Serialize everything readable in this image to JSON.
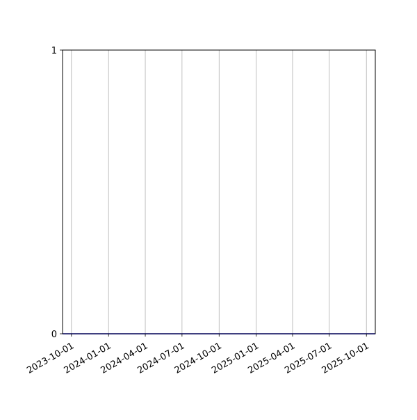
{
  "chart_data": {
    "type": "line",
    "title": "",
    "xlabel": "",
    "ylabel": "",
    "xlim": [
      "2023-09-09",
      "2025-10-23"
    ],
    "ylim": [
      0,
      1
    ],
    "grid": {
      "x": true,
      "y": false
    },
    "x_ticks": [
      "2023-10-01",
      "2024-01-01",
      "2024-04-01",
      "2024-07-01",
      "2024-10-01",
      "2025-01-01",
      "2025-04-01",
      "2025-07-01",
      "2025-10-01"
    ],
    "y_ticks": [
      0,
      1
    ],
    "series": [
      {
        "color": "#0000ff",
        "x": [
          "2023-09-09",
          "2025-10-23"
        ],
        "y": [
          0,
          0
        ]
      }
    ],
    "colors": {
      "grid": "#b0b0b0",
      "axes": "#000000",
      "line": "#0000ff"
    }
  }
}
